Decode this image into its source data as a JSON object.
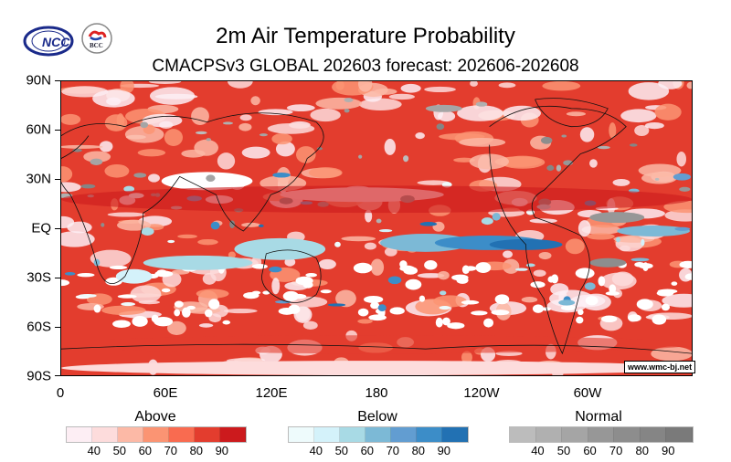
{
  "header": {
    "title": "2m Air Temperature Probability",
    "subtitle": "CMACPSv3 GLOBAL 202603 forecast: 202606-202608",
    "logos": [
      "NCC",
      "BCC"
    ]
  },
  "map": {
    "lat_labels": [
      "90N",
      "60N",
      "30N",
      "EQ",
      "30S",
      "60S",
      "90S"
    ],
    "lon_labels": [
      "0",
      "60E",
      "120E",
      "180",
      "120W",
      "60W"
    ],
    "watermark": "www.wmc-bj.net"
  },
  "legends": [
    {
      "title": "Above",
      "labels": [
        "40",
        "50",
        "60",
        "70",
        "80",
        "90"
      ],
      "colors": [
        "#fdeef4",
        "#fddcdc",
        "#fcb9a6",
        "#fb9473",
        "#f96b50",
        "#e33d2e",
        "#cc1a1d"
      ]
    },
    {
      "title": "Below",
      "labels": [
        "40",
        "50",
        "60",
        "70",
        "80",
        "90"
      ],
      "colors": [
        "#eefbfc",
        "#d4f2fa",
        "#a8dae5",
        "#7cb9d6",
        "#629dd1",
        "#3c8dc8",
        "#2271b3"
      ]
    },
    {
      "title": "Normal",
      "labels": [
        "40",
        "50",
        "60",
        "70",
        "80",
        "90"
      ],
      "colors": [
        "#bcbcbc",
        "#b0b0b0",
        "#a5a5a5",
        "#979797",
        "#8d8d8d",
        "#858585",
        "#7a7a7a"
      ]
    }
  ]
}
